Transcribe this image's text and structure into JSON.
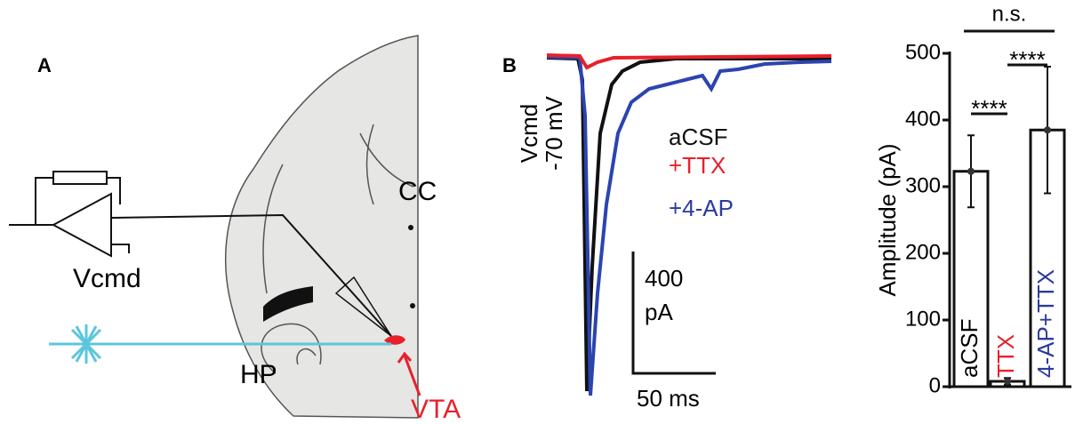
{
  "panels": {
    "a": "A",
    "b": "B"
  },
  "diagram": {
    "amplifier": "Vcmd",
    "cc": "CC",
    "hp": "HP",
    "vta": "VTA"
  },
  "traces": {
    "holding": [
      "Vcmd",
      "-70 mV"
    ],
    "legend": [
      "aCSF",
      "+TTX",
      "+4-AP"
    ],
    "scale_y": [
      "400",
      "pA"
    ],
    "scale_x": "50 ms"
  },
  "chart_data": {
    "type": "bar",
    "ylabel": "Amplitude (pA)",
    "categories": [
      "aCSF",
      "TTX",
      "4-AP+TTX"
    ],
    "values": [
      323,
      8,
      385
    ],
    "errors": [
      54,
      5,
      95
    ],
    "colors": [
      "#000000",
      "#e8202a",
      "#2b3a9e"
    ],
    "ylim": [
      0,
      500
    ],
    "yticks": [
      0,
      100,
      200,
      300,
      400,
      500
    ],
    "annotations": [
      "****",
      "****",
      "n.s."
    ]
  }
}
